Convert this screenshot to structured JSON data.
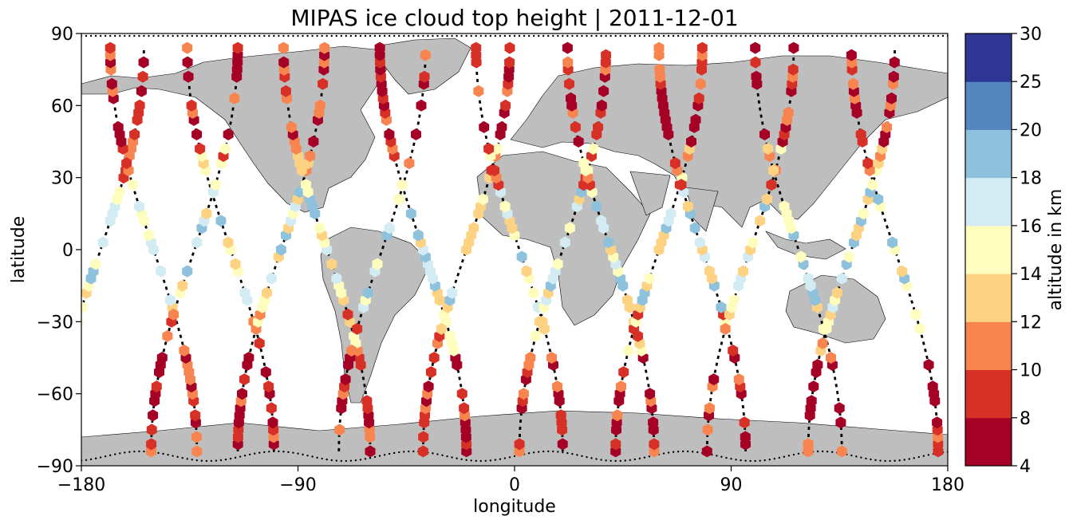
{
  "chart_data": {
    "type": "scatter",
    "title": "MIPAS ice cloud top height | 2011-12-01",
    "xlabel": "longitude",
    "ylabel": "latitude",
    "xlim": [
      -180,
      180
    ],
    "ylim": [
      -90,
      90
    ],
    "xticks": [
      -180,
      -90,
      0,
      90,
      180
    ],
    "yticks": [
      -90,
      -60,
      -30,
      0,
      30,
      60,
      90
    ],
    "xtick_labels": [
      "−180",
      "−90",
      "0",
      "90",
      "180"
    ],
    "ytick_labels": [
      "−90",
      "−60",
      "−30",
      "0",
      "30",
      "60",
      "90"
    ],
    "background": "map with continents (grey)",
    "orbit_track_style": "black dotted",
    "grid": false,
    "colorbar": {
      "label": "altitude in km",
      "boundaries": [
        4,
        8,
        10,
        12,
        14,
        16,
        18,
        20,
        25,
        30
      ],
      "tick_labels": [
        "4",
        "8",
        "10",
        "12",
        "14",
        "16",
        "18",
        "20",
        "25",
        "30"
      ],
      "colors": [
        "#a50026",
        "#d73027",
        "#f46d43",
        "#fdae61",
        "#fee090",
        "#ffffbf",
        "#e0f3f8",
        "#abd9e9",
        "#74add1",
        "#4575b4",
        "#313695"
      ],
      "bin_colors": [
        "#a50026",
        "#d73027",
        "#f88550",
        "#fdd283",
        "#fffdbd",
        "#d3ecf3",
        "#8ec1dc",
        "#5286bd",
        "#2f3694"
      ]
    },
    "orbits": [
      {
        "lon": -172,
        "dir": 1
      },
      {
        "lon": -150,
        "dir": -1
      },
      {
        "lon": -133,
        "dir": 1
      },
      {
        "lon": -118,
        "dir": -1
      },
      {
        "lon": -97,
        "dir": 1
      },
      {
        "lon": -78,
        "dir": -1
      },
      {
        "lon": -55,
        "dir": 1
      },
      {
        "lon": -38,
        "dir": -1
      },
      {
        "lon": -20,
        "dir": 1
      },
      {
        "lon": 2,
        "dir": -1
      },
      {
        "lon": 20,
        "dir": 1
      },
      {
        "lon": 40,
        "dir": -1
      },
      {
        "lon": 60,
        "dir": 1
      },
      {
        "lon": 78,
        "dir": -1
      },
      {
        "lon": 98,
        "dir": 1
      },
      {
        "lon": 118,
        "dir": -1
      },
      {
        "lon": 140,
        "dir": 1
      },
      {
        "lon": 158,
        "dir": -1
      }
    ]
  }
}
